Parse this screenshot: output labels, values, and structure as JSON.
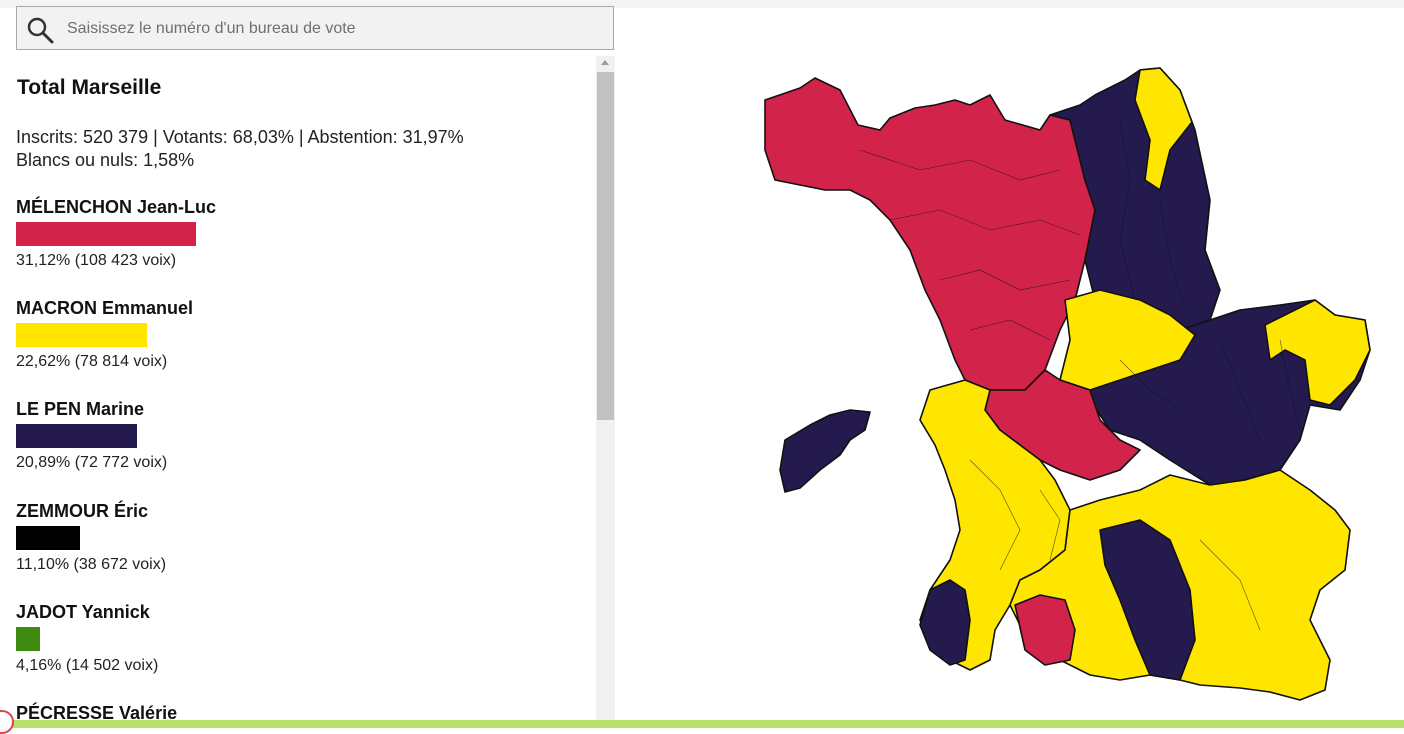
{
  "search": {
    "placeholder": "Saisissez le numéro d'un bureau de vote"
  },
  "summary": {
    "title": "Total Marseille",
    "line1": "Inscrits: 520 379 | Votants: 68,03% | Abstention: 31,97%",
    "line2": "Blancs ou nuls: 1,58%"
  },
  "candidates": [
    {
      "name": "MÉLENCHON Jean-Luc",
      "percent": 31.12,
      "result": "31,12% (108 423 voix)",
      "color": "#d2234a"
    },
    {
      "name": "MACRON Emmanuel",
      "percent": 22.62,
      "result": "22,62% (78 814 voix)",
      "color": "#ffe600"
    },
    {
      "name": "LE PEN Marine",
      "percent": 20.89,
      "result": "20,89% (72 772 voix)",
      "color": "#241a4d"
    },
    {
      "name": "ZEMMOUR Éric",
      "percent": 11.1,
      "result": "11,10% (38 672 voix)",
      "color": "#000000"
    },
    {
      "name": "JADOT Yannick",
      "percent": 4.16,
      "result": "4,16% (14 502 voix)",
      "color": "#3f8a12"
    },
    {
      "name": "PÉCRESSE Valérie",
      "percent": null,
      "result": "",
      "color": "#4a90d9"
    }
  ],
  "map": {
    "colors": {
      "melenchon": "#d2234a",
      "macron": "#ffe600",
      "lepen": "#241a4d"
    },
    "icon": "search-icon"
  }
}
